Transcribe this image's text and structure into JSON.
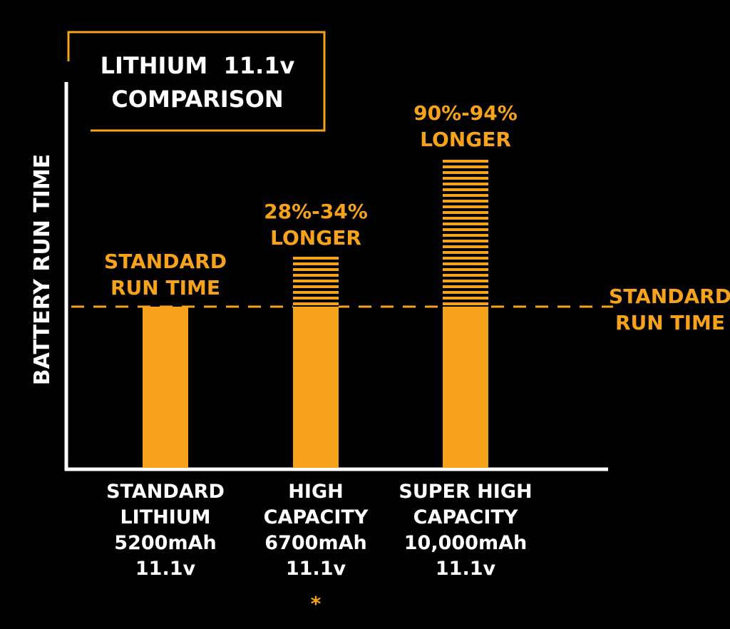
{
  "colors": {
    "background": "#000000",
    "accent": "#F7A21B",
    "axis": "#FFFFFF",
    "text_primary": "#FFFFFF"
  },
  "title_box": {
    "line1": "LITHIUM  11.1v",
    "line2": "COMPARISON"
  },
  "chart_data": {
    "type": "bar",
    "title": "LITHIUM  11.1v COMPARISON",
    "ylabel": "BATTERY RUN TIME",
    "xlabel": "",
    "grid": false,
    "ylim": [
      0,
      2.2
    ],
    "reference_line": {
      "value": 1.0,
      "label_lines": [
        "STANDARD",
        "RUN TIME"
      ],
      "style": "dashed"
    },
    "categories": [
      {
        "lines": [
          "STANDARD",
          "LITHIUM",
          "5200mAh",
          "11.1v"
        ],
        "footnote": ""
      },
      {
        "lines": [
          "HIGH",
          "CAPACITY",
          "6700mAh",
          "11.1v"
        ],
        "footnote": "*"
      },
      {
        "lines": [
          "SUPER HIGH",
          "CAPACITY",
          "10,000mAh",
          "11.1v"
        ],
        "footnote": ""
      }
    ],
    "bars": [
      {
        "base": 1.0,
        "extra": 0.0,
        "label_lines": [
          "STANDARD",
          "RUN TIME"
        ]
      },
      {
        "base": 1.0,
        "extra": 0.31,
        "label_lines": [
          "28%-34%",
          "LONGER"
        ]
      },
      {
        "base": 1.0,
        "extra": 0.92,
        "label_lines": [
          "90%-94%",
          "LONGER"
        ]
      }
    ]
  }
}
